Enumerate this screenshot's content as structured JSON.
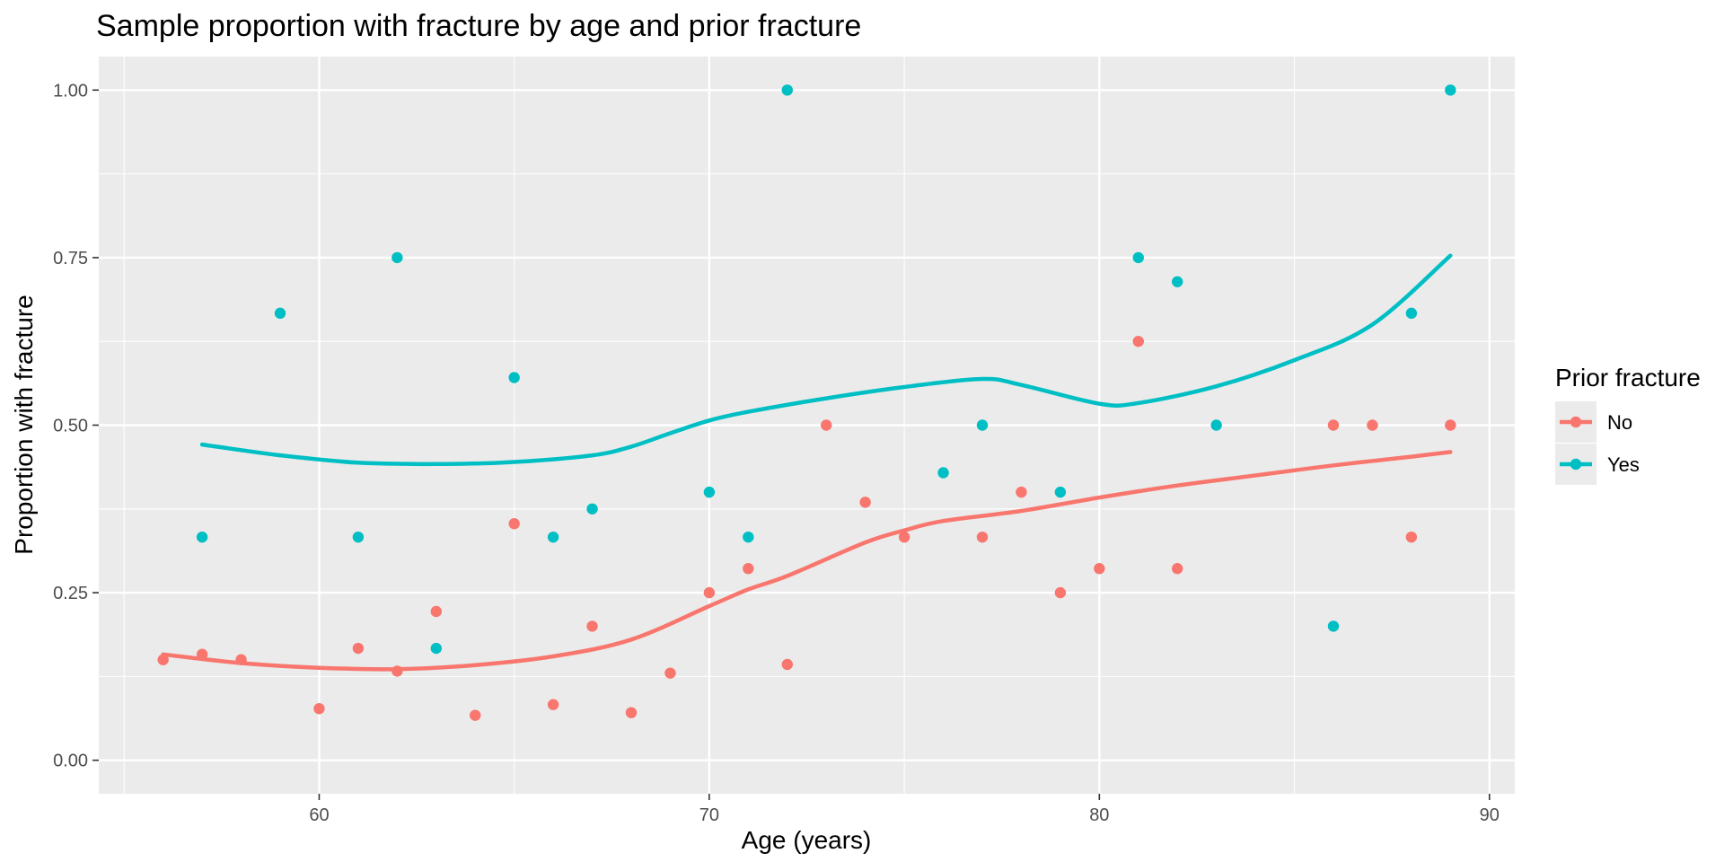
{
  "chart_data": {
    "type": "scatter",
    "title": "Sample proportion with fracture by age and prior fracture",
    "xlabel": "Age (years)",
    "ylabel": "Proportion with fracture",
    "xlim": [
      54.35,
      90.65
    ],
    "ylim": [
      -0.05,
      1.05
    ],
    "x_ticks": [
      60,
      70,
      80,
      90
    ],
    "x_minor": [
      55,
      65,
      75,
      85
    ],
    "y_ticks": [
      0,
      0.25,
      0.5,
      0.75,
      1.0
    ],
    "y_tick_labels": [
      "0.00",
      "0.25",
      "0.50",
      "0.75",
      "1.00"
    ],
    "y_minor": [
      0.125,
      0.375,
      0.625,
      0.875
    ],
    "grid": true,
    "legend_position": "right",
    "legend_title": "Prior fracture",
    "series": [
      {
        "name": "No",
        "color": "#F8766D",
        "points": [
          [
            56,
            0.15
          ],
          [
            57,
            0.158
          ],
          [
            58,
            0.15
          ],
          [
            60,
            0.077
          ],
          [
            61,
            0.167
          ],
          [
            62,
            0.133
          ],
          [
            63,
            0.222
          ],
          [
            64,
            0.067
          ],
          [
            65,
            0.353
          ],
          [
            66,
            0.083
          ],
          [
            67,
            0.2
          ],
          [
            68,
            0.071
          ],
          [
            69,
            0.13
          ],
          [
            70,
            0.25
          ],
          [
            71,
            0.286
          ],
          [
            72,
            0.143
          ],
          [
            73,
            0.5
          ],
          [
            74,
            0.385
          ],
          [
            75,
            0.333
          ],
          [
            77,
            0.333
          ],
          [
            78,
            0.4
          ],
          [
            79,
            0.25
          ],
          [
            80,
            0.286
          ],
          [
            81,
            0.625
          ],
          [
            82,
            0.286
          ],
          [
            86,
            0.5
          ],
          [
            87,
            0.5
          ],
          [
            88,
            0.333
          ],
          [
            89,
            0.5
          ]
        ],
        "smooth": [
          [
            56,
            0.158
          ],
          [
            58,
            0.145
          ],
          [
            60,
            0.138
          ],
          [
            62,
            0.136
          ],
          [
            64,
            0.142
          ],
          [
            66,
            0.155
          ],
          [
            68,
            0.18
          ],
          [
            70,
            0.23
          ],
          [
            71,
            0.255
          ],
          [
            72,
            0.275
          ],
          [
            74,
            0.325
          ],
          [
            75,
            0.343
          ],
          [
            76,
            0.357
          ],
          [
            78,
            0.372
          ],
          [
            80,
            0.392
          ],
          [
            82,
            0.41
          ],
          [
            84,
            0.425
          ],
          [
            86,
            0.44
          ],
          [
            88,
            0.453
          ],
          [
            89,
            0.46
          ]
        ]
      },
      {
        "name": "Yes",
        "color": "#00BFC4",
        "points": [
          [
            57,
            0.333
          ],
          [
            59,
            0.667
          ],
          [
            61,
            0.333
          ],
          [
            62,
            0.75
          ],
          [
            63,
            0.167
          ],
          [
            65,
            0.571
          ],
          [
            66,
            0.333
          ],
          [
            67,
            0.375
          ],
          [
            70,
            0.4
          ],
          [
            71,
            0.333
          ],
          [
            72,
            1.0
          ],
          [
            76,
            0.429
          ],
          [
            77,
            0.5
          ],
          [
            79,
            0.4
          ],
          [
            81,
            0.75
          ],
          [
            82,
            0.714
          ],
          [
            83,
            0.5
          ],
          [
            86,
            0.2
          ],
          [
            88,
            0.667
          ],
          [
            89,
            1.0
          ]
        ],
        "smooth": [
          [
            57,
            0.471
          ],
          [
            59,
            0.455
          ],
          [
            61,
            0.444
          ],
          [
            63,
            0.442
          ],
          [
            65,
            0.445
          ],
          [
            67,
            0.455
          ],
          [
            68,
            0.468
          ],
          [
            69,
            0.488
          ],
          [
            70,
            0.507
          ],
          [
            71,
            0.52
          ],
          [
            73,
            0.54
          ],
          [
            75,
            0.557
          ],
          [
            77,
            0.569
          ],
          [
            78,
            0.56
          ],
          [
            80,
            0.532
          ],
          [
            81,
            0.533
          ],
          [
            83,
            0.558
          ],
          [
            85,
            0.597
          ],
          [
            87,
            0.65
          ],
          [
            89,
            0.753
          ]
        ]
      }
    ]
  }
}
